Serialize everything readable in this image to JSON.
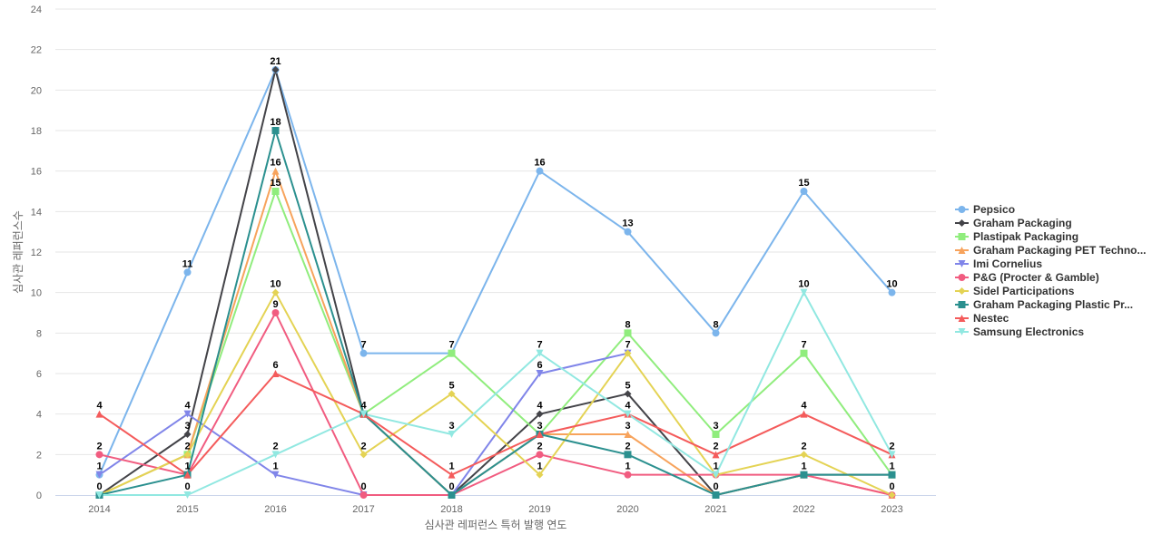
{
  "chart_data": {
    "type": "line",
    "xlabel": "심사관 레퍼런스 특허 발행 연도",
    "ylabel": "심사관 레퍼런스수",
    "x": [
      "2014",
      "2015",
      "2016",
      "2017",
      "2018",
      "2019",
      "2020",
      "2021",
      "2022",
      "2023"
    ],
    "ylim": [
      0,
      24
    ],
    "yticks": [
      0,
      2,
      4,
      6,
      8,
      10,
      12,
      14,
      16,
      18,
      20,
      22,
      24
    ],
    "grid": true,
    "legend_position": "right",
    "series": [
      {
        "name": "Pepsico",
        "color": "#7cb5ec",
        "marker": "circle",
        "values": [
          1,
          11,
          21,
          7,
          7,
          16,
          13,
          8,
          15,
          10
        ]
      },
      {
        "name": "Graham Packaging",
        "color": "#434348",
        "marker": "diamond",
        "values": [
          0,
          3,
          21,
          4,
          0,
          4,
          5,
          0,
          1,
          1
        ]
      },
      {
        "name": "Plastipak Packaging",
        "color": "#90ed7d",
        "marker": "square",
        "values": [
          0,
          2,
          15,
          4,
          7,
          3,
          8,
          3,
          7,
          1
        ]
      },
      {
        "name": "Graham Packaging PET Techno...",
        "color": "#f7a35c",
        "marker": "triangle",
        "values": [
          0,
          2,
          16,
          4,
          0,
          3,
          3,
          0,
          1,
          0
        ]
      },
      {
        "name": "Imi Cornelius",
        "color": "#8085e9",
        "marker": "triangle-down",
        "values": [
          1,
          4,
          1,
          0,
          0,
          6,
          7,
          null,
          null,
          null
        ]
      },
      {
        "name": "P&G (Procter & Gamble)",
        "color": "#f15c80",
        "marker": "circle",
        "values": [
          2,
          1,
          9,
          0,
          0,
          2,
          1,
          1,
          1,
          0
        ]
      },
      {
        "name": "Sidel Participations",
        "color": "#e4d354",
        "marker": "diamond",
        "values": [
          0,
          2,
          10,
          2,
          5,
          1,
          7,
          1,
          2,
          0
        ]
      },
      {
        "name": "Graham Packaging Plastic Pr...",
        "color": "#2b908f",
        "marker": "square",
        "values": [
          0,
          1,
          18,
          4,
          0,
          3,
          2,
          0,
          1,
          1
        ]
      },
      {
        "name": "Nestec",
        "color": "#f45b5b",
        "marker": "triangle",
        "values": [
          4,
          1,
          6,
          4,
          1,
          3,
          4,
          2,
          4,
          2
        ]
      },
      {
        "name": "Samsung Electronics",
        "color": "#91e8e1",
        "marker": "triangle-down",
        "values": [
          0,
          0,
          2,
          4,
          3,
          7,
          4,
          1,
          10,
          2
        ]
      }
    ],
    "labels": [
      {
        "x": "2014",
        "text": "4",
        "series": "Nestec"
      },
      {
        "x": "2014",
        "text": "2",
        "series": "P&G (Procter & Gamble)"
      },
      {
        "x": "2014",
        "text": "1",
        "series": "Pepsico"
      },
      {
        "x": "2014",
        "text": "0",
        "series": "Graham Packaging"
      },
      {
        "x": "2015",
        "text": "11",
        "series": "Pepsico"
      },
      {
        "x": "2015",
        "text": "4",
        "series": "Imi Cornelius"
      },
      {
        "x": "2015",
        "text": "3",
        "series": "Graham Packaging"
      },
      {
        "x": "2015",
        "text": "2",
        "series": "Plastipak Packaging"
      },
      {
        "x": "2015",
        "text": "1",
        "series": "Graham Packaging Plastic Pr..."
      },
      {
        "x": "2015",
        "text": "0",
        "series": "Samsung Electronics"
      },
      {
        "x": "2016",
        "text": "21",
        "series": "Pepsico"
      },
      {
        "x": "2016",
        "text": "18",
        "series": "Graham Packaging Plastic Pr..."
      },
      {
        "x": "2016",
        "text": "16",
        "series": "Graham Packaging PET Techno..."
      },
      {
        "x": "2016",
        "text": "15",
        "series": "Plastipak Packaging"
      },
      {
        "x": "2016",
        "text": "10",
        "series": "Sidel Participations"
      },
      {
        "x": "2016",
        "text": "9",
        "series": "P&G (Procter & Gamble)"
      },
      {
        "x": "2016",
        "text": "6",
        "series": "Nestec"
      },
      {
        "x": "2016",
        "text": "2",
        "series": "Samsung Electronics"
      },
      {
        "x": "2016",
        "text": "1",
        "series": "Imi Cornelius"
      },
      {
        "x": "2017",
        "text": "7",
        "series": "Pepsico"
      },
      {
        "x": "2017",
        "text": "4",
        "series": "Graham Packaging"
      },
      {
        "x": "2017",
        "text": "2",
        "series": "Sidel Participations"
      },
      {
        "x": "2017",
        "text": "0",
        "series": "P&G (Procter & Gamble)"
      },
      {
        "x": "2018",
        "text": "7",
        "series": "Pepsico"
      },
      {
        "x": "2018",
        "text": "5",
        "series": "Sidel Participations"
      },
      {
        "x": "2018",
        "text": "3",
        "series": "Samsung Electronics"
      },
      {
        "x": "2018",
        "text": "1",
        "series": "Nestec"
      },
      {
        "x": "2018",
        "text": "0",
        "series": "Graham Packaging"
      },
      {
        "x": "2019",
        "text": "16",
        "series": "Pepsico"
      },
      {
        "x": "2019",
        "text": "7",
        "series": "Samsung Electronics"
      },
      {
        "x": "2019",
        "text": "6",
        "series": "Imi Cornelius"
      },
      {
        "x": "2019",
        "text": "4",
        "series": "Graham Packaging"
      },
      {
        "x": "2019",
        "text": "3",
        "series": "Graham Packaging Plastic Pr..."
      },
      {
        "x": "2019",
        "text": "2",
        "series": "P&G (Procter & Gamble)"
      },
      {
        "x": "2019",
        "text": "1",
        "series": "Sidel Participations"
      },
      {
        "x": "2020",
        "text": "13",
        "series": "Pepsico"
      },
      {
        "x": "2020",
        "text": "8",
        "series": "Plastipak Packaging"
      },
      {
        "x": "2020",
        "text": "7",
        "series": "Sidel Participations"
      },
      {
        "x": "2020",
        "text": "5",
        "series": "Graham Packaging"
      },
      {
        "x": "2020",
        "text": "4",
        "series": "Samsung Electronics"
      },
      {
        "x": "2020",
        "text": "3",
        "series": "Graham Packaging PET Techno..."
      },
      {
        "x": "2020",
        "text": "2",
        "series": "Graham Packaging Plastic Pr..."
      },
      {
        "x": "2020",
        "text": "1",
        "series": "P&G (Procter & Gamble)"
      },
      {
        "x": "2021",
        "text": "8",
        "series": "Pepsico"
      },
      {
        "x": "2021",
        "text": "3",
        "series": "Plastipak Packaging"
      },
      {
        "x": "2021",
        "text": "2",
        "series": "Nestec"
      },
      {
        "x": "2021",
        "text": "1",
        "series": "Sidel Participations"
      },
      {
        "x": "2021",
        "text": "0",
        "series": "Graham Packaging"
      },
      {
        "x": "2022",
        "text": "15",
        "series": "Pepsico"
      },
      {
        "x": "2022",
        "text": "10",
        "series": "Samsung Electronics"
      },
      {
        "x": "2022",
        "text": "7",
        "series": "Plastipak Packaging"
      },
      {
        "x": "2022",
        "text": "4",
        "series": "Nestec"
      },
      {
        "x": "2022",
        "text": "2",
        "series": "Sidel Participations"
      },
      {
        "x": "2022",
        "text": "1",
        "series": "Graham Packaging"
      },
      {
        "x": "2023",
        "text": "10",
        "series": "Pepsico"
      },
      {
        "x": "2023",
        "text": "2",
        "series": "Nestec"
      },
      {
        "x": "2023",
        "text": "1",
        "series": "Graham Packaging"
      },
      {
        "x": "2023",
        "text": "0",
        "series": "Graham Packaging PET Techno..."
      }
    ]
  }
}
